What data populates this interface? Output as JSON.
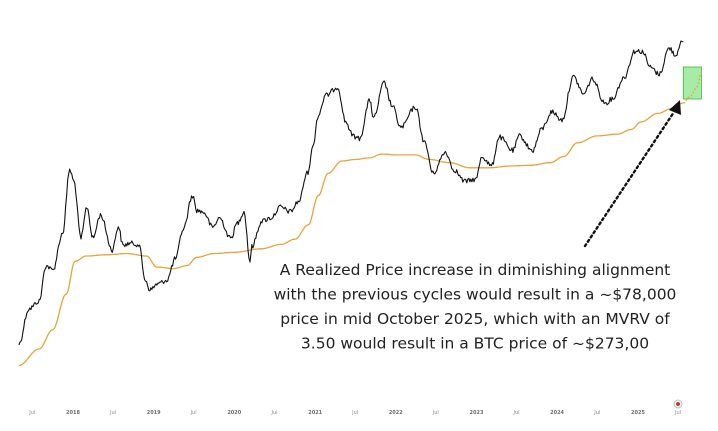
{
  "chart_data": {
    "type": "line",
    "title": "",
    "xlabel": "",
    "ylabel": "",
    "y_scale": "log",
    "grid": false,
    "x_ticks": [
      "Jul",
      "2018",
      "Jul",
      "2019",
      "Jul",
      "2020",
      "Jul",
      "2021",
      "Jul",
      "2022",
      "Jul",
      "2023",
      "Jul",
      "2024",
      "Jul",
      "2025",
      "Jul"
    ],
    "series": [
      {
        "color": "#111111",
        "points": [
          [
            "2017-05-01",
            1500
          ],
          [
            "2017-06-15",
            2500
          ],
          [
            "2017-08-01",
            2800
          ],
          [
            "2017-09-01",
            4700
          ],
          [
            "2017-10-01",
            4400
          ],
          [
            "2017-11-15",
            7500
          ],
          [
            "2017-12-17",
            19000
          ],
          [
            "2018-01-05",
            16000
          ],
          [
            "2018-02-06",
            7000
          ],
          [
            "2018-03-05",
            11000
          ],
          [
            "2018-04-01",
            7000
          ],
          [
            "2018-05-05",
            9800
          ],
          [
            "2018-06-28",
            5900
          ],
          [
            "2018-07-25",
            8300
          ],
          [
            "2018-08-15",
            6300
          ],
          [
            "2018-09-15",
            6500
          ],
          [
            "2018-10-25",
            6400
          ],
          [
            "2018-11-25",
            3800
          ],
          [
            "2018-12-15",
            3300
          ],
          [
            "2019-01-20",
            3600
          ],
          [
            "2019-03-01",
            3800
          ],
          [
            "2019-04-10",
            5200
          ],
          [
            "2019-05-15",
            8000
          ],
          [
            "2019-06-26",
            13000
          ],
          [
            "2019-07-15",
            10500
          ],
          [
            "2019-08-15",
            10200
          ],
          [
            "2019-09-25",
            8200
          ],
          [
            "2019-10-26",
            9400
          ],
          [
            "2019-12-15",
            7000
          ],
          [
            "2020-01-15",
            8700
          ],
          [
            "2020-02-14",
            10300
          ],
          [
            "2020-03-12",
            5000
          ],
          [
            "2020-03-20",
            6200
          ],
          [
            "2020-05-05",
            9000
          ],
          [
            "2020-06-15",
            9400
          ],
          [
            "2020-07-27",
            11000
          ],
          [
            "2020-09-10",
            10300
          ],
          [
            "2020-10-20",
            12000
          ],
          [
            "2020-11-25",
            18000
          ],
          [
            "2020-12-30",
            29000
          ],
          [
            "2021-01-08",
            40000
          ],
          [
            "2021-02-20",
            56000
          ],
          [
            "2021-04-13",
            63000
          ],
          [
            "2021-05-19",
            38000
          ],
          [
            "2021-06-21",
            31000
          ],
          [
            "2021-07-20",
            29800
          ],
          [
            "2021-09-06",
            52000
          ],
          [
            "2021-09-22",
            40000
          ],
          [
            "2021-11-09",
            67000
          ],
          [
            "2021-12-15",
            48000
          ],
          [
            "2022-01-24",
            35000
          ],
          [
            "2022-03-30",
            47000
          ],
          [
            "2022-05-12",
            28000
          ],
          [
            "2022-06-18",
            18000
          ],
          [
            "2022-08-14",
            24500
          ],
          [
            "2022-09-20",
            19000
          ],
          [
            "2022-11-09",
            16000
          ],
          [
            "2022-12-30",
            16500
          ],
          [
            "2023-01-25",
            23000
          ],
          [
            "2023-03-10",
            20000
          ],
          [
            "2023-04-14",
            30500
          ],
          [
            "2023-06-15",
            25000
          ],
          [
            "2023-07-14",
            31000
          ],
          [
            "2023-09-11",
            25000
          ],
          [
            "2023-10-25",
            34500
          ],
          [
            "2023-12-08",
            44000
          ],
          [
            "2024-01-23",
            39000
          ],
          [
            "2024-03-14",
            73000
          ],
          [
            "2024-05-01",
            57000
          ],
          [
            "2024-06-07",
            71000
          ],
          [
            "2024-08-05",
            50000
          ],
          [
            "2024-09-06",
            53000
          ],
          [
            "2024-10-29",
            72000
          ],
          [
            "2024-12-17",
            106000
          ],
          [
            "2025-01-21",
            106000
          ],
          [
            "2025-02-26",
            84000
          ],
          [
            "2025-04-07",
            76000
          ],
          [
            "2025-05-22",
            111000
          ],
          [
            "2025-06-22",
            100000
          ],
          [
            "2025-07-14",
            122000
          ],
          [
            "2025-07-25",
            118000
          ]
        ]
      },
      {
        "color": "#e8a33a",
        "points": [
          [
            "2017-05-01",
            1100
          ],
          [
            "2017-08-01",
            1400
          ],
          [
            "2017-10-01",
            1850
          ],
          [
            "2017-12-01",
            3100
          ],
          [
            "2018-01-10",
            5000
          ],
          [
            "2018-03-01",
            5400
          ],
          [
            "2018-06-01",
            5500
          ],
          [
            "2018-09-01",
            5600
          ],
          [
            "2018-12-01",
            5400
          ],
          [
            "2019-01-15",
            4600
          ],
          [
            "2019-04-01",
            4500
          ],
          [
            "2019-06-01",
            4700
          ],
          [
            "2019-07-15",
            5300
          ],
          [
            "2019-10-01",
            5600
          ],
          [
            "2020-01-01",
            5700
          ],
          [
            "2020-05-01",
            6000
          ],
          [
            "2020-08-01",
            6400
          ],
          [
            "2020-10-01",
            6900
          ],
          [
            "2020-12-01",
            8500
          ],
          [
            "2021-01-15",
            13000
          ],
          [
            "2021-03-01",
            18000
          ],
          [
            "2021-05-01",
            21500
          ],
          [
            "2021-07-01",
            22000
          ],
          [
            "2021-09-01",
            22500
          ],
          [
            "2021-11-01",
            23800
          ],
          [
            "2022-01-01",
            23500
          ],
          [
            "2022-04-01",
            23500
          ],
          [
            "2022-06-01",
            22000
          ],
          [
            "2022-09-01",
            21000
          ],
          [
            "2022-12-01",
            19500
          ],
          [
            "2023-03-01",
            19500
          ],
          [
            "2023-06-01",
            20000
          ],
          [
            "2023-09-01",
            20200
          ],
          [
            "2023-12-01",
            21000
          ],
          [
            "2024-02-01",
            23000
          ],
          [
            "2024-04-01",
            28000
          ],
          [
            "2024-07-01",
            31000
          ],
          [
            "2024-10-01",
            31800
          ],
          [
            "2024-12-01",
            34000
          ],
          [
            "2025-01-15",
            38000
          ],
          [
            "2025-04-01",
            43000
          ],
          [
            "2025-06-01",
            46000
          ],
          [
            "2025-07-25",
            50000
          ]
        ]
      },
      {
        "style": "dotted-projection",
        "color": "#e8a33a",
        "points": [
          [
            "2025-07-25",
            50000
          ],
          [
            "2025-08-25",
            55000
          ],
          [
            "2025-09-25",
            63000
          ],
          [
            "2025-10-15",
            78000
          ]
        ]
      }
    ],
    "annotations": [
      {
        "text_lines": [
          "A Realized Price increase in diminishing alignment",
          "with the previous cycles would result in a ~$78,000",
          "price in mid October 2025, which with an MVRV of",
          "3.50 would result in a BTC price of ~$273,00"
        ]
      }
    ],
    "highlight_box": {
      "color": "#5ddc5d",
      "x_range": [
        "2025-07-25",
        "2025-10-15"
      ]
    }
  }
}
